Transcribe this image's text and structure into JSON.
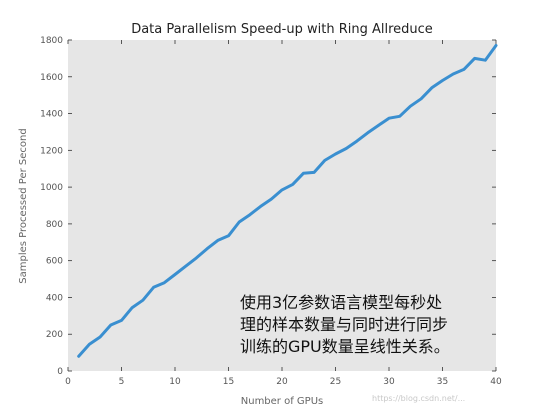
{
  "chart_data": {
    "type": "line",
    "title": "Data Parallelism Speed-up with Ring Allreduce",
    "xlabel": "Number of GPUs",
    "ylabel": "Samples Processed Per Second",
    "xlim": [
      0,
      40
    ],
    "ylim": [
      0,
      1800
    ],
    "xticks": [
      0,
      5,
      10,
      15,
      20,
      25,
      30,
      35,
      40
    ],
    "yticks": [
      0,
      200,
      400,
      600,
      800,
      1000,
      1200,
      1400,
      1600,
      1800
    ],
    "grid": false,
    "colors": {
      "background": "#e6e6e6",
      "line": "#3a8fd0"
    },
    "series": [
      {
        "x": [
          1,
          2,
          3,
          4,
          5,
          6,
          7,
          8,
          9,
          10,
          11,
          12,
          13,
          14,
          15,
          16,
          17,
          18,
          19,
          20,
          21,
          22,
          23,
          24,
          25,
          26,
          27,
          28,
          29,
          30,
          31,
          32,
          33,
          34,
          35,
          36,
          37,
          38,
          39,
          40
        ],
        "y": [
          80,
          145,
          185,
          250,
          275,
          345,
          385,
          455,
          480,
          525,
          570,
          615,
          665,
          710,
          735,
          810,
          850,
          895,
          935,
          985,
          1015,
          1075,
          1080,
          1145,
          1180,
          1210,
          1250,
          1295,
          1335,
          1375,
          1385,
          1440,
          1480,
          1540,
          1580,
          1615,
          1640,
          1700,
          1690,
          1770
        ]
      }
    ]
  },
  "annotation": {
    "lines": [
      "使用3亿参数语言模型每秒处",
      "理的样本数量与同时进行同步",
      "训练的GPU数量呈线性关系。"
    ]
  },
  "watermark": "https://blog.csdn.net/..."
}
